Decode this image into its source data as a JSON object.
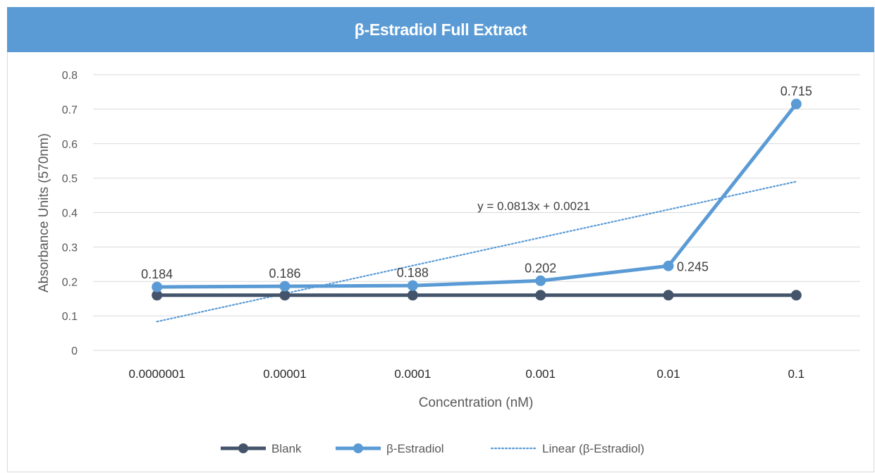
{
  "chart_data": {
    "type": "line",
    "title": "β-Estradiol Full Extract",
    "xlabel": "Concentration (nM)",
    "ylabel": "Absorbance Units (570nm)",
    "categories": [
      "0.0000001",
      "0.00001",
      "0.0001",
      "0.001",
      "0.01",
      "0.1"
    ],
    "ylim": [
      0,
      0.8
    ],
    "yticks": [
      "0",
      "0.1",
      "0.2",
      "0.3",
      "0.4",
      "0.5",
      "0.6",
      "0.7",
      "0.8"
    ],
    "grid": true,
    "legend_position": "bottom",
    "series": [
      {
        "name": "Blank",
        "values": [
          0.16,
          0.16,
          0.16,
          0.16,
          0.16,
          0.16
        ],
        "color": "#44546a"
      },
      {
        "name": "β-Estradiol",
        "values": [
          0.184,
          0.186,
          0.188,
          0.202,
          0.245,
          0.715
        ],
        "data_labels": [
          "0.184",
          "0.186",
          "0.188",
          "0.202",
          "0.245",
          "0.715"
        ],
        "color": "#5b9bd5"
      }
    ],
    "trendline": {
      "name": "Linear (β-Estradiol)",
      "type": "linear",
      "slope": 0.0813,
      "intercept": 0.0021,
      "equation": "y = 0.0813x + 0.0021",
      "color": "#5b9bd5"
    }
  }
}
